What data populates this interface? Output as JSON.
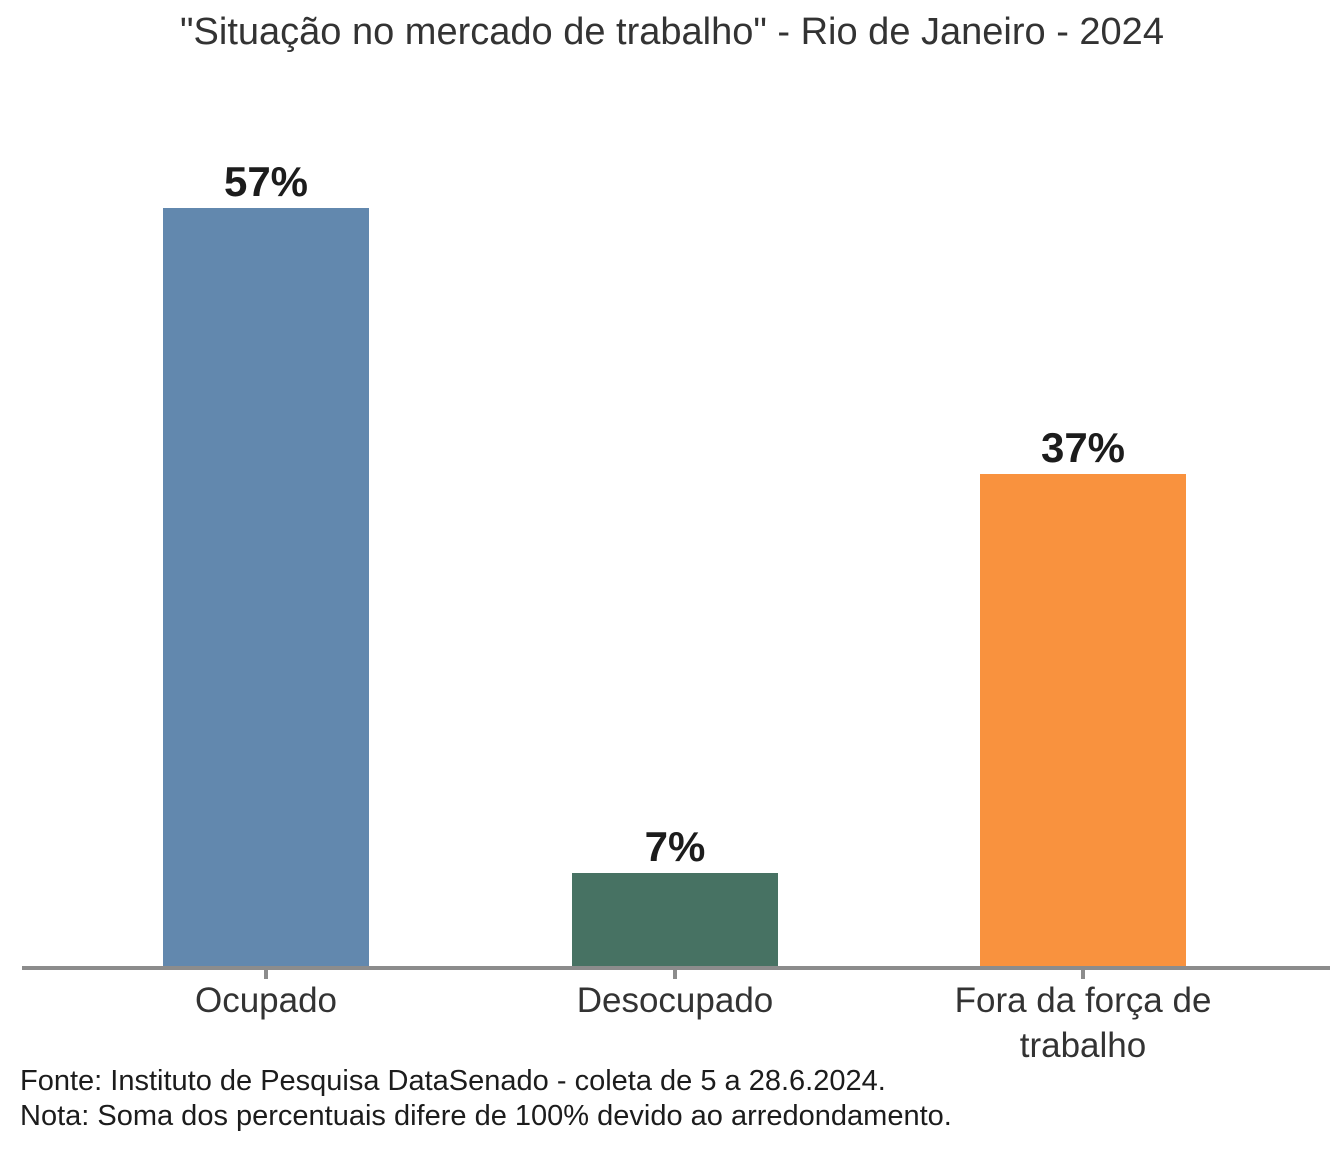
{
  "chart_data": {
    "type": "bar",
    "title": "\"Situação no mercado de trabalho\" - Rio de Janeiro - 2024",
    "categories": [
      "Ocupado",
      "Desocupado",
      "Fora da força de trabalho"
    ],
    "values": [
      57,
      7,
      37
    ],
    "value_labels": [
      "57%",
      "7%",
      "37%"
    ],
    "bar_colors": [
      "#6288ae",
      "#477263",
      "#f9923e"
    ],
    "unit": "%",
    "ylim": [
      0,
      60
    ],
    "grid": false,
    "legend": false,
    "axis_color": "#8c8c8c"
  },
  "footer": {
    "fonte": "Fonte: Instituto de Pesquisa DataSenado - coleta de 5 a 28.6.2024.",
    "nota": "Nota: Soma dos percentuais difere de 100% devido ao arredondamento."
  }
}
